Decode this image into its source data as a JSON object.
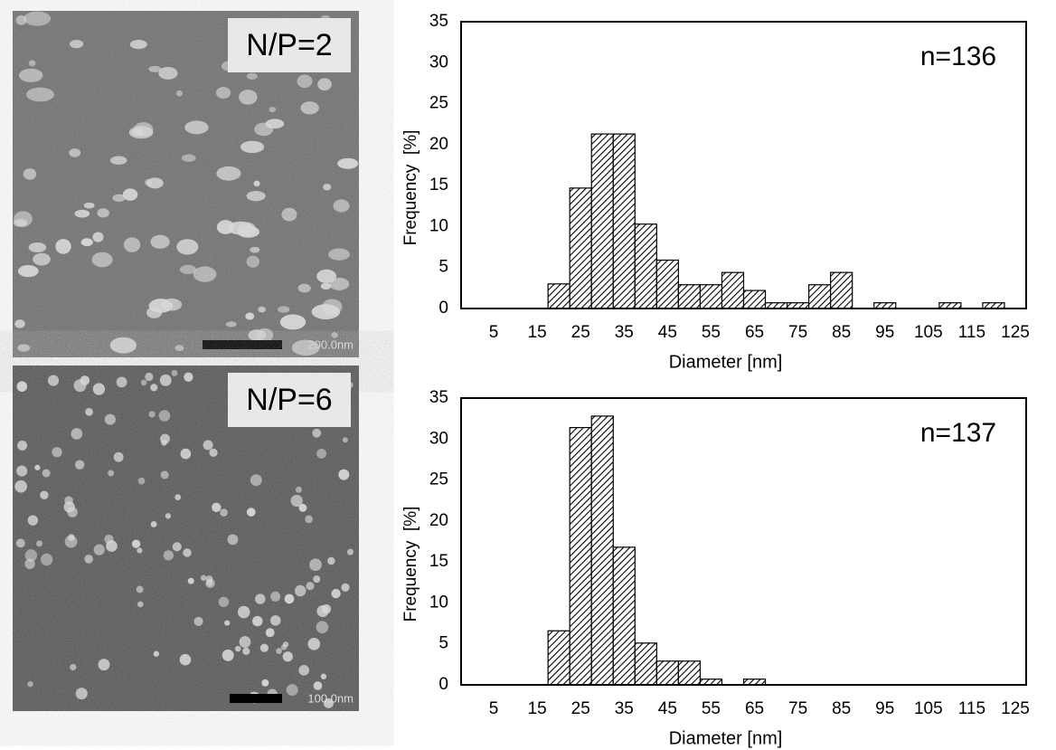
{
  "images": [
    {
      "label": "N/P=2",
      "scale_bar": "200.0nm"
    },
    {
      "label": "N/P=6",
      "scale_bar": "100.0nm"
    }
  ],
  "chart_data": [
    {
      "type": "bar",
      "annotation": "n=136",
      "x_label": "Diameter [nm]",
      "y_label": "Frequency  [%]",
      "categories": [
        null,
        5,
        null,
        15,
        null,
        25,
        null,
        35,
        null,
        45,
        null,
        55,
        null,
        65,
        null,
        75,
        null,
        85,
        null,
        95,
        null,
        105,
        null,
        115,
        null,
        125
      ],
      "values": [
        0,
        0,
        0,
        0,
        3,
        14.7,
        21.3,
        21.3,
        10.3,
        5.9,
        2.9,
        2.9,
        4.4,
        2.2,
        0.7,
        0.7,
        2.9,
        4.4,
        0,
        0.7,
        0,
        0,
        0.7,
        0,
        0.7,
        0
      ],
      "color": "#000000",
      "ylim": [
        0,
        35
      ],
      "yticks": [
        0,
        5,
        10,
        15,
        20,
        25,
        30,
        35
      ]
    },
    {
      "type": "bar",
      "annotation": "n=137",
      "x_label": "Diameter [nm]",
      "y_label": "Frequency  [%]",
      "categories": [
        null,
        5,
        null,
        15,
        null,
        25,
        null,
        35,
        null,
        45,
        null,
        55,
        null,
        65,
        null,
        75,
        null,
        85,
        null,
        95,
        null,
        105,
        null,
        115,
        null,
        125
      ],
      "values": [
        0,
        0,
        0,
        0,
        6.6,
        31.4,
        32.8,
        16.8,
        5.1,
        2.9,
        2.9,
        0.7,
        0,
        0.7,
        0,
        0,
        0,
        0,
        0,
        0,
        0,
        0,
        0,
        0,
        0,
        0
      ],
      "color": "#000000",
      "ylim": [
        0,
        35
      ],
      "yticks": [
        0,
        5,
        10,
        15,
        20,
        25,
        30,
        35
      ]
    }
  ]
}
